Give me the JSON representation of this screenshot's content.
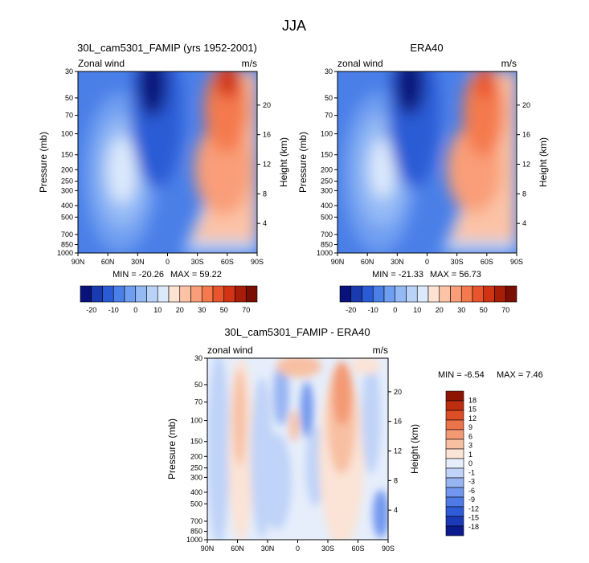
{
  "figure": {
    "title": "JJA",
    "left_unit": "Pressure (mb)",
    "right_unit": "Height (km)"
  },
  "chart_data": [
    {
      "type": "heatmap",
      "title": "30L_cam5301_FAMIP (yrs 1952-2001)",
      "variable_label": "Zonal wind",
      "units": "m/s",
      "xlabel": "",
      "ylabel": "Pressure (mb)",
      "ylabel_right": "Height (km)",
      "x_ticks": [
        "90N",
        "60N",
        "30N",
        "0",
        "30S",
        "60S",
        "90S"
      ],
      "y_ticks": [
        "30",
        "50",
        "70",
        "100",
        "150",
        "200",
        "250",
        "300",
        "400",
        "500",
        "700",
        "850",
        "1000"
      ],
      "y_ticks_right": [
        "20",
        "16",
        "12",
        "8",
        "4"
      ],
      "min_label": "MIN = -20.26",
      "max_label": "MAX = 59.22",
      "colorbar_ticks": [
        "-20",
        "-10",
        "0",
        "10",
        "20",
        "30",
        "50",
        "70"
      ]
    },
    {
      "type": "heatmap",
      "title": "ERA40",
      "variable_label": "zonal wind",
      "units": "m/s",
      "xlabel": "",
      "ylabel": "Pressure (mb)",
      "ylabel_right": "Height (km)",
      "x_ticks": [
        "90N",
        "60N",
        "30N",
        "0",
        "30S",
        "60S",
        "90S"
      ],
      "y_ticks": [
        "30",
        "50",
        "70",
        "100",
        "150",
        "200",
        "250",
        "300",
        "400",
        "500",
        "700",
        "850",
        "1000"
      ],
      "y_ticks_right": [
        "20",
        "16",
        "12",
        "8",
        "4"
      ],
      "min_label": "MIN = -21.33",
      "max_label": "MAX =  56.73",
      "colorbar_ticks": [
        "-20",
        "-10",
        "0",
        "10",
        "20",
        "30",
        "50",
        "70"
      ]
    },
    {
      "type": "heatmap",
      "title": "30L_cam5301_FAMIP - ERA40",
      "variable_label": "zonal wind",
      "units": "m/s",
      "xlabel": "",
      "ylabel": "Pressure (mb)",
      "ylabel_right": "Height (km)",
      "x_ticks": [
        "90N",
        "60N",
        "30N",
        "0",
        "30S",
        "60S",
        "90S"
      ],
      "y_ticks": [
        "30",
        "50",
        "70",
        "100",
        "150",
        "200",
        "250",
        "300",
        "400",
        "500",
        "700",
        "850",
        "1000"
      ],
      "y_ticks_right": [
        "20",
        "16",
        "12",
        "8",
        "4"
      ],
      "min_label": "MIN =  -6.54",
      "max_label": "MAX =   7.46",
      "colorbar_ticks": [
        "18",
        "15",
        "12",
        "9",
        "6",
        "3",
        "1",
        "0",
        "-1",
        "-3",
        "-6",
        "-9",
        "-12",
        "-15",
        "-18"
      ]
    }
  ],
  "palette": {
    "abs": [
      "#08127a",
      "#1a3bb0",
      "#2a5bd6",
      "#4a7fe8",
      "#6f9ef0",
      "#94baf5",
      "#b8d2f8",
      "#dbe9fb",
      "#fde2d2",
      "#fcc3a6",
      "#f99e78",
      "#f47a4e",
      "#e8542c",
      "#d13414",
      "#a81d08",
      "#7a0e02"
    ],
    "diff": [
      "#0b1a8c",
      "#1c3ab8",
      "#2f5bd8",
      "#4d7ae6",
      "#7297ee",
      "#98b5f3",
      "#c0d3f8",
      "#e6eefb",
      "#fbe3d6",
      "#f8c0a3",
      "#f39a74",
      "#ec7449",
      "#dc4e26",
      "#bd2e10",
      "#8f1503"
    ]
  }
}
